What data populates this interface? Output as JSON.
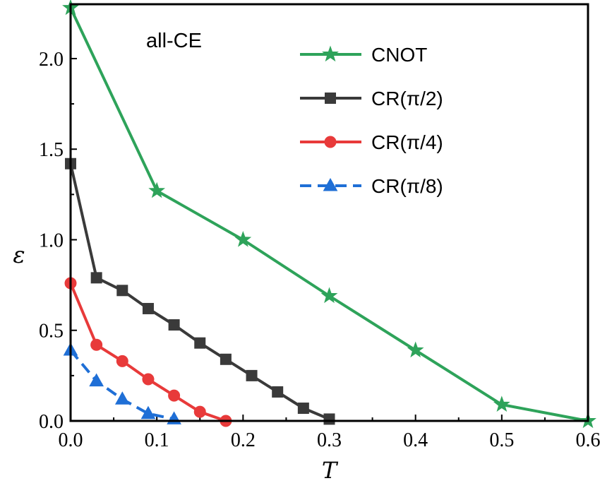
{
  "chart_data": {
    "type": "line",
    "annotation": "all-CE",
    "xlabel": "T",
    "ylabel": "ε",
    "xlim": [
      0.0,
      0.6
    ],
    "ylim": [
      0.0,
      2.3
    ],
    "xticks": [
      "0.0",
      "0.1",
      "0.2",
      "0.3",
      "0.4",
      "0.5",
      "0.6"
    ],
    "yticks": [
      "0.0",
      "0.5",
      "1.0",
      "1.5",
      "2.0"
    ],
    "grid": false,
    "legend_position": "top-right",
    "series": [
      {
        "name": "CNOT",
        "marker": "star",
        "color": "#2ea35a",
        "x": [
          0.0,
          0.1,
          0.2,
          0.3,
          0.4,
          0.5,
          0.6
        ],
        "y": [
          2.28,
          1.27,
          1.0,
          0.69,
          0.39,
          0.09,
          0.0
        ]
      },
      {
        "name": "CR(π/2)",
        "marker": "square",
        "color": "#3a3a3a",
        "x": [
          0.0,
          0.03,
          0.06,
          0.09,
          0.12,
          0.15,
          0.18,
          0.21,
          0.24,
          0.27,
          0.3
        ],
        "y": [
          1.42,
          0.79,
          0.72,
          0.62,
          0.53,
          0.43,
          0.34,
          0.25,
          0.16,
          0.07,
          0.01
        ]
      },
      {
        "name": "CR(π/4)",
        "marker": "circle",
        "color": "#e83a3a",
        "x": [
          0.0,
          0.03,
          0.06,
          0.09,
          0.12,
          0.15,
          0.18
        ],
        "y": [
          0.76,
          0.42,
          0.33,
          0.23,
          0.14,
          0.05,
          0.0
        ]
      },
      {
        "name": "CR(π/8)",
        "marker": "triangle",
        "color": "#1f6fd6",
        "x": [
          0.0,
          0.03,
          0.06,
          0.09,
          0.12
        ],
        "y": [
          0.39,
          0.22,
          0.12,
          0.04,
          0.01
        ]
      }
    ]
  }
}
